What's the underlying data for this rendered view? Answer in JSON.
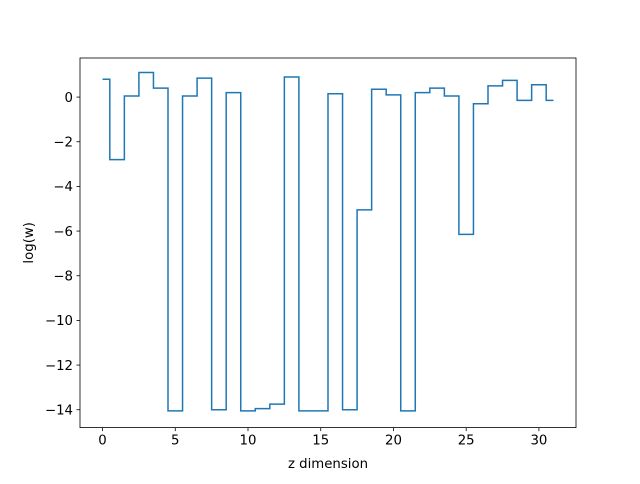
{
  "chart_data": {
    "type": "line",
    "drawstyle": "steps-mid",
    "title": "",
    "xlabel": "z dimension",
    "ylabel": "log(w)",
    "xlim": [
      -1.55,
      32.55
    ],
    "ylim": [
      -14.8,
      1.75
    ],
    "xticks": [
      0,
      5,
      10,
      15,
      20,
      25,
      30
    ],
    "yticks": [
      -14,
      -12,
      -10,
      -8,
      -6,
      -4,
      -2,
      0
    ],
    "grid": false,
    "legend": false,
    "series": [
      {
        "color": "#1f77b4",
        "x": [
          0,
          1,
          2,
          3,
          4,
          5,
          6,
          7,
          8,
          9,
          10,
          11,
          12,
          13,
          14,
          15,
          16,
          17,
          18,
          19,
          20,
          21,
          22,
          23,
          24,
          25,
          26,
          27,
          28,
          29,
          30,
          31
        ],
        "y": [
          0.8,
          -2.8,
          0.05,
          1.1,
          0.4,
          -14.05,
          0.05,
          0.85,
          -14.0,
          0.2,
          -14.05,
          -13.95,
          -13.75,
          0.9,
          -14.05,
          -14.05,
          0.15,
          -14.0,
          -5.05,
          0.35,
          0.1,
          -14.05,
          0.2,
          0.4,
          0.05,
          -6.15,
          -0.3,
          0.5,
          0.75,
          -0.15,
          0.55,
          -0.15
        ]
      }
    ]
  }
}
